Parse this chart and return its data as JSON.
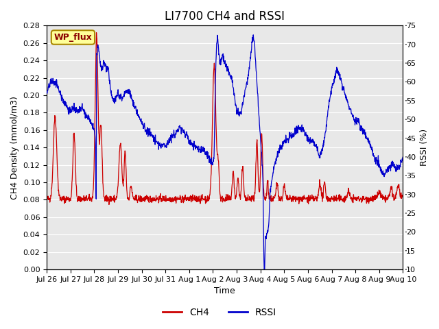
{
  "title": "LI7700 CH4 and RSSI",
  "xlabel": "Time",
  "ylabel_left": "CH4 Density (mmol/m3)",
  "ylabel_right": "RSSI (%)",
  "ylim_left": [
    0.0,
    0.28
  ],
  "ylim_right": [
    10,
    75
  ],
  "yticks_left": [
    0.0,
    0.02,
    0.04,
    0.06,
    0.08,
    0.1,
    0.12,
    0.14,
    0.16,
    0.18,
    0.2,
    0.22,
    0.24,
    0.26,
    0.28
  ],
  "yticks_right": [
    10,
    15,
    20,
    25,
    30,
    35,
    40,
    45,
    50,
    55,
    60,
    65,
    70,
    75
  ],
  "xtick_labels": [
    "Jul 26",
    "Jul 27",
    "Jul 28",
    "Jul 29",
    "Jul 30",
    "Jul 31",
    "Aug 1",
    "Aug 2",
    "Aug 3",
    "Aug 4",
    "Aug 5",
    "Aug 6",
    "Aug 7",
    "Aug 8",
    "Aug 9",
    "Aug 10"
  ],
  "ch4_color": "#cc0000",
  "rssi_color": "#0000cc",
  "background_color": "#e8e8e8",
  "site_label": "WP_flux",
  "site_label_bg": "#ffff99",
  "site_label_border": "#aa8800",
  "legend_ch4": "CH4",
  "legend_rssi": "RSSI",
  "title_fontsize": 12,
  "label_fontsize": 9,
  "tick_fontsize": 8
}
